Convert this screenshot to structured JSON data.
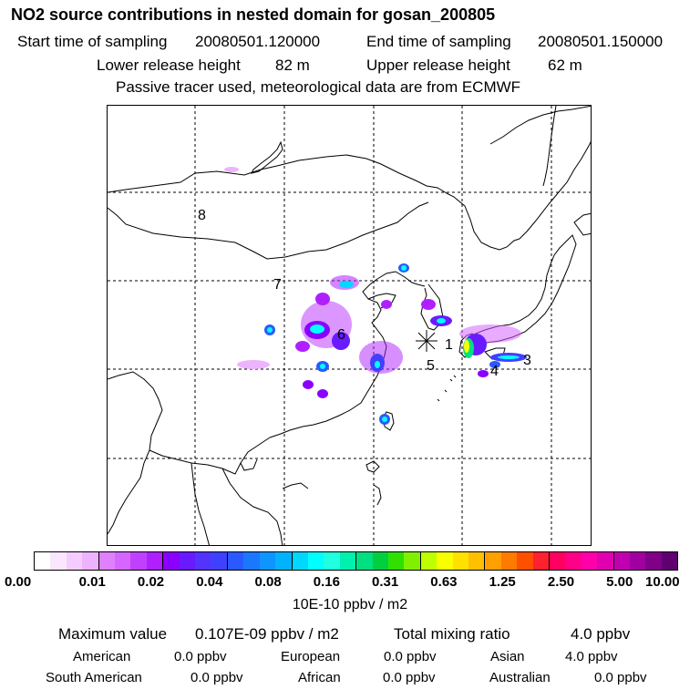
{
  "header": {
    "title": "NO2 source contributions in nested domain for gosan_200805",
    "start_label": "Start time of sampling",
    "start_value": "20080501.120000",
    "end_label": "End time of sampling",
    "end_value": "20080501.150000",
    "lower_label": "Lower release height",
    "lower_value": "82 m",
    "upper_label": "Upper release height",
    "upper_value": "62 m",
    "note": "Passive tracer used, meteorological data are from ECMWF"
  },
  "map": {
    "region_labels": [
      "8",
      "7",
      "6",
      "1",
      "5",
      "3",
      "4"
    ],
    "receptor_marker": "asterisk-receptor",
    "background": "#ffffff"
  },
  "colorbar": {
    "ticks": [
      "0.00",
      "0.01",
      "0.02",
      "0.04",
      "0.08",
      "0.16",
      "0.31",
      "0.63",
      "1.25",
      "2.50",
      "5.00",
      "10.00"
    ],
    "colors": [
      "#ffffff",
      "#fbe6ff",
      "#f5ccff",
      "#eeb3ff",
      "#e080ff",
      "#d566ff",
      "#c040ff",
      "#b020ff",
      "#8a00ff",
      "#6a1aff",
      "#5533ff",
      "#4040ff",
      "#2a5aff",
      "#1a78ff",
      "#0f95ff",
      "#00b3ff",
      "#00d8ff",
      "#00ffff",
      "#20ffe0",
      "#00f0b0",
      "#00e080",
      "#00d040",
      "#30e000",
      "#80f000",
      "#c0ff00",
      "#f8ff00",
      "#ffe000",
      "#ffc000",
      "#ffa000",
      "#ff7a00",
      "#ff5000",
      "#ff2030",
      "#ff0060",
      "#ff0088",
      "#ff00aa",
      "#e000b0",
      "#c000b0",
      "#a000a0",
      "#800088",
      "#600070"
    ],
    "unit": "10E-10 ppbv / m2"
  },
  "summary": {
    "max_label": "Maximum value",
    "max_value": "0.107E-09 ppbv / m2",
    "total_label": "Total mixing ratio",
    "total_value": "4.0 ppbv",
    "regions": [
      {
        "name": "American",
        "value": "0.0 ppbv"
      },
      {
        "name": "European",
        "value": "0.0 ppbv"
      },
      {
        "name": "Asian",
        "value": "4.0 ppbv"
      },
      {
        "name": "South American",
        "value": "0.0 ppbv"
      },
      {
        "name": "African",
        "value": "0.0 ppbv"
      },
      {
        "name": "Australian",
        "value": "0.0 ppbv"
      }
    ]
  }
}
